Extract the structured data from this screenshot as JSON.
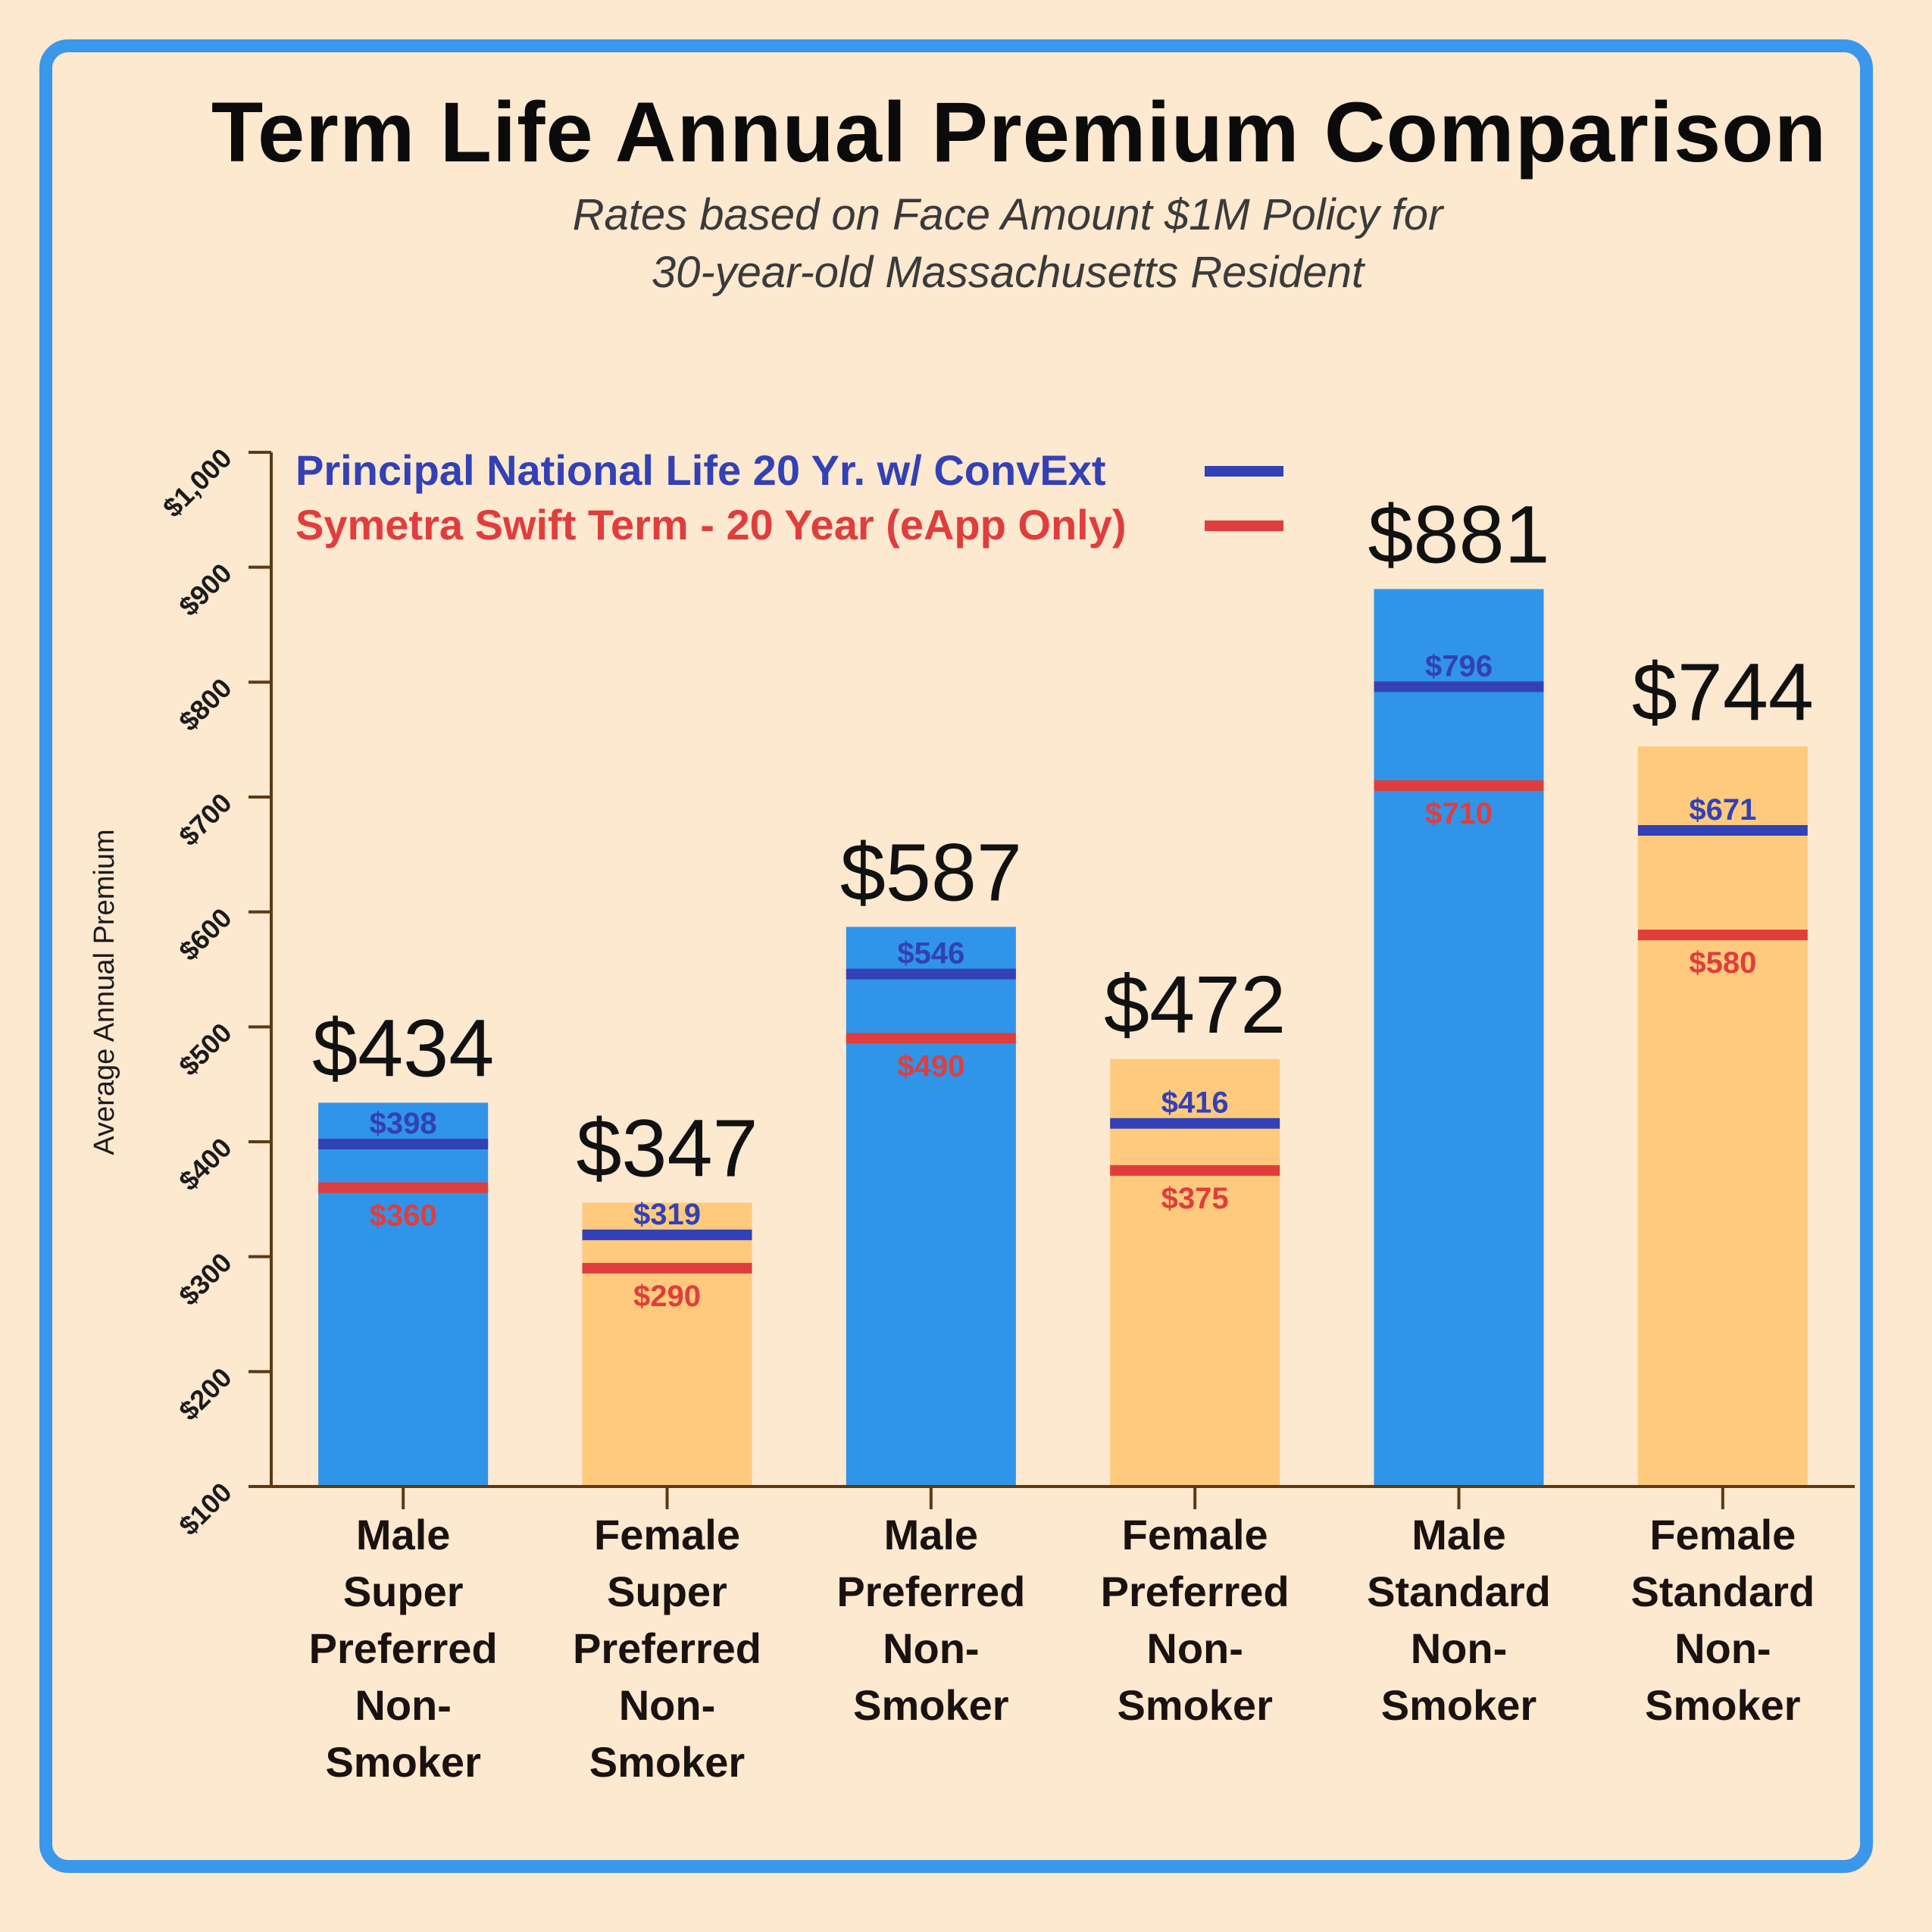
{
  "title": "Term Life Annual Premium Comparison",
  "subtitle": {
    "line1": "Rates based on Face Amount $1M Policy for",
    "line2": "30-year-old Massachusetts Resident"
  },
  "colors": {
    "frame": "#3a97ea",
    "background": "#fde8d0",
    "bar_male": "#3094e8",
    "bar_female": "#ffca7d",
    "principal": "#3241b5",
    "symetra": "#e03d3d",
    "axis": "#5b3a14"
  },
  "chart_data": {
    "type": "bar",
    "ylabel": "Average Annual Premium",
    "ylim": [
      100,
      1000
    ],
    "yticks": [
      100,
      200,
      300,
      400,
      500,
      600,
      700,
      800,
      900,
      1000
    ],
    "ytick_labels": [
      "$100",
      "$200",
      "$300",
      "$400",
      "$500",
      "$600",
      "$700",
      "$800",
      "$900",
      "$1,000"
    ],
    "categories": [
      [
        "Male",
        "Super",
        "Preferred",
        "Non-",
        "Smoker"
      ],
      [
        "Female",
        "Super",
        "Preferred",
        "Non-",
        "Smoker"
      ],
      [
        "Male",
        "Preferred",
        "Non-",
        "Smoker"
      ],
      [
        "Female",
        "Preferred",
        "Non-",
        "Smoker"
      ],
      [
        "Male",
        "Standard",
        "Non-",
        "Smoker"
      ],
      [
        "Female",
        "Standard",
        "Non-",
        "Smoker"
      ]
    ],
    "bar_kind": [
      "male",
      "female",
      "male",
      "female",
      "male",
      "female"
    ],
    "values": [
      434,
      347,
      587,
      472,
      881,
      744
    ],
    "value_labels": [
      "$434",
      "$347",
      "$587",
      "$472",
      "$881",
      "$744"
    ],
    "series": [
      {
        "name": "Principal National Life 20 Yr. w/ ConvExt",
        "values": [
          398,
          319,
          546,
          416,
          796,
          671
        ],
        "labels": [
          "$398",
          "$319",
          "$546",
          "$416",
          "$796",
          "$671"
        ]
      },
      {
        "name": "Symetra Swift Term - 20 Year (eApp Only)",
        "values": [
          360,
          290,
          490,
          375,
          710,
          580
        ],
        "labels": [
          "$360",
          "$290",
          "$490",
          "$375",
          "$710",
          "$580"
        ]
      }
    ],
    "legend": "top-left"
  }
}
